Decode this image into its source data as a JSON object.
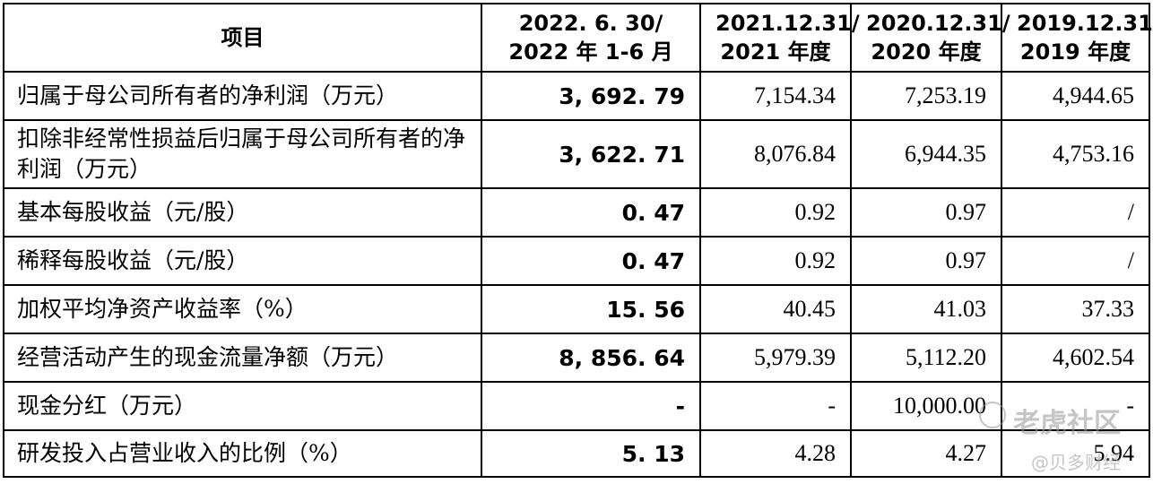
{
  "table": {
    "header": {
      "item": "项目",
      "columns": [
        [
          "2022. 6. 30/",
          "2022 年 1-6 月"
        ],
        [
          "2021.12.31/",
          "2021 年度"
        ],
        [
          "2020.12.31/",
          "2020 年度"
        ],
        [
          "2019.12.31/",
          "2019 年度"
        ]
      ]
    },
    "rows": [
      {
        "label": "归属于母公司所有者的净利润（万元）",
        "values": [
          "3, 692. 79",
          "7,154.34",
          "7,253.19",
          "4,944.65"
        ]
      },
      {
        "label": "扣除非经常性损益后归属于母公司所有者的净利润（万元）",
        "values": [
          "3, 622. 71",
          "8,076.84",
          "6,944.35",
          "4,753.16"
        ]
      },
      {
        "label": "基本每股收益（元/股）",
        "values": [
          "0. 47",
          "0.92",
          "0.97",
          "/"
        ]
      },
      {
        "label": "稀释每股收益（元/股）",
        "values": [
          "0. 47",
          "0.92",
          "0.97",
          "/"
        ]
      },
      {
        "label": "加权平均净资产收益率（%）",
        "values": [
          "15. 56",
          "40.45",
          "41.03",
          "37.33"
        ]
      },
      {
        "label": "经营活动产生的现金流量净额（万元）",
        "values": [
          "8, 856. 64",
          "5,979.39",
          "5,112.20",
          "4,602.54"
        ]
      },
      {
        "label": "现金分红（万元）",
        "values": [
          "-",
          "-",
          "10,000.00",
          "-"
        ]
      },
      {
        "label": "研发投入占营业收入的比例（%）",
        "values": [
          "5. 13",
          "4.28",
          "4.27",
          "5.94"
        ]
      }
    ]
  },
  "watermark": {
    "line1": "老虎社区",
    "line2": "@贝多财经"
  }
}
